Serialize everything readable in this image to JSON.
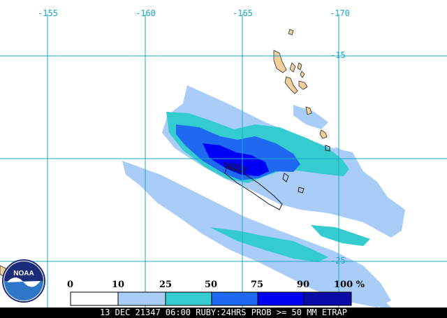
{
  "map": {
    "longitude_labels": [
      "-155",
      "-160",
      "-165",
      "-170"
    ],
    "latitude_labels": [
      "-15",
      "-25"
    ],
    "logo_text": "NOAA"
  },
  "legend": {
    "tick_labels": [
      "0",
      "10",
      "25",
      "50",
      "75",
      "90",
      "100 %"
    ],
    "bins": [
      {
        "range": "0-10",
        "color": "#ffffff"
      },
      {
        "range": "10-25",
        "color": "#a9cdf7"
      },
      {
        "range": "25-50",
        "color": "#35ccd0"
      },
      {
        "range": "50-75",
        "color": "#1e68f2"
      },
      {
        "range": "75-90",
        "color": "#0000f4"
      },
      {
        "range": "90-100",
        "color": "#0a0aa8"
      }
    ]
  },
  "caption": "13 DEC 21347 06:00 RUBY:24HRS PROB >= 50 MM ETRAP",
  "colors": {
    "grid": "#1aa7c9",
    "land": "#f3cf9b",
    "caption_bg": "#000000",
    "caption_text": "#ffffff"
  }
}
